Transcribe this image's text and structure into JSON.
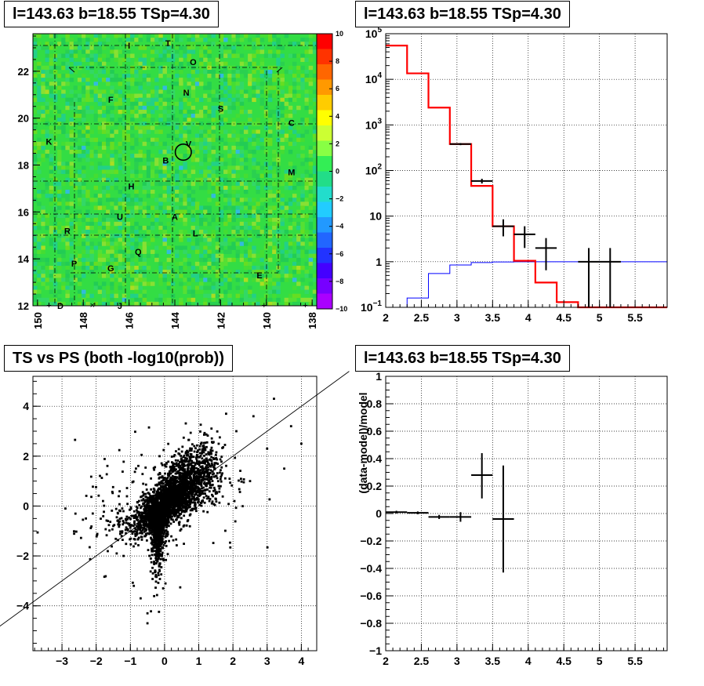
{
  "panels": {
    "skymap": {
      "title": "l=143.63 b=18.55 TSp=4.30"
    },
    "spectrum": {
      "title": "l=143.63 b=18.55 TSp=4.30"
    },
    "scatter": {
      "title": "TS vs PS (both -log10(prob))"
    },
    "residual": {
      "title": "l=143.63 b=18.55 TSp=4.30"
    }
  },
  "colors": {
    "map_base": "#33dd44",
    "model_line": "#ff0000",
    "background_line": "#0000ff",
    "data_points": "#000000"
  },
  "chart_data": [
    {
      "type": "heatmap",
      "title": "l=143.63 b=18.55 TSp=4.30",
      "x_ticks": [
        "150",
        "148",
        "146",
        "144",
        "142",
        "140",
        "138"
      ],
      "xlim": [
        150.2,
        137.8
      ],
      "y_ticks": [
        "12",
        "14",
        "16",
        "18",
        "20",
        "22"
      ],
      "ylim": [
        12,
        23.6
      ],
      "colorbar": {
        "range": [
          -10,
          10
        ],
        "ticks": [
          "10",
          "8",
          "6",
          "4",
          "2",
          "0",
          "-2",
          "-4",
          "-6",
          "-8",
          "-10"
        ]
      },
      "source_labels": [
        {
          "label": "I",
          "l": 146.0,
          "b": 23.1
        },
        {
          "label": "T",
          "l": 144.3,
          "b": 23.2
        },
        {
          "label": "O",
          "l": 143.2,
          "b": 22.4
        },
        {
          "label": "N",
          "l": 143.5,
          "b": 21.1
        },
        {
          "label": "F",
          "l": 146.8,
          "b": 20.8
        },
        {
          "label": "S",
          "l": 142.0,
          "b": 20.4
        },
        {
          "label": "C",
          "l": 138.9,
          "b": 19.8
        },
        {
          "label": "K",
          "l": 149.5,
          "b": 19.0
        },
        {
          "label": "V",
          "l": 143.4,
          "b": 18.9
        },
        {
          "label": "B",
          "l": 144.4,
          "b": 18.2
        },
        {
          "label": "M",
          "l": 138.9,
          "b": 17.7
        },
        {
          "label": "H",
          "l": 145.9,
          "b": 17.1
        },
        {
          "label": "U",
          "l": 146.4,
          "b": 15.8
        },
        {
          "label": "A",
          "l": 144.0,
          "b": 15.8
        },
        {
          "label": "R",
          "l": 148.7,
          "b": 15.2
        },
        {
          "label": "L",
          "l": 143.1,
          "b": 15.1
        },
        {
          "label": "Q",
          "l": 145.6,
          "b": 14.3
        },
        {
          "label": "P",
          "l": 148.4,
          "b": 13.8
        },
        {
          "label": "G",
          "l": 146.8,
          "b": 13.6
        },
        {
          "label": "E",
          "l": 140.3,
          "b": 13.3
        },
        {
          "label": "D",
          "l": 149.0,
          "b": 12.0
        },
        {
          "label": "J",
          "l": 146.4,
          "b": 12.0
        }
      ],
      "circle": {
        "l": 143.63,
        "b": 18.55,
        "r": 0.35
      }
    },
    {
      "type": "line",
      "title": "l=143.63 b=18.55 TSp=4.30",
      "x_ticks": [
        "2",
        "2.5",
        "3",
        "3.5",
        "4",
        "4.5",
        "5",
        "5.5"
      ],
      "xlim": [
        2,
        5.95
      ],
      "y_log": true,
      "y_ticks": [
        "10^-1",
        "1",
        "10",
        "10^2",
        "10^3",
        "10^4",
        "10^5"
      ],
      "ylim": [
        0.1,
        100000
      ],
      "series": [
        {
          "edges": [
            2.0,
            2.3,
            2.6,
            2.9,
            3.2,
            3.5,
            3.8,
            4.1,
            4.4,
            4.7,
            5.0,
            5.3,
            5.6,
            5.95
          ],
          "values": [
            55000,
            13500,
            2400,
            380,
            46,
            6,
            1.05,
            0.35,
            0.13,
            0.1,
            0.1,
            0.1,
            0.1
          ]
        },
        {
          "edges": [
            2.0,
            2.3,
            2.6,
            2.9,
            3.2,
            3.5,
            3.8,
            4.1,
            4.4,
            4.7,
            5.0,
            5.3,
            5.6,
            5.95
          ],
          "values": [
            0.1,
            0.16,
            0.55,
            0.85,
            0.96,
            0.99,
            1.0,
            1.0,
            1.0,
            1.0,
            1.0,
            1.0,
            1.0
          ]
        },
        {
          "points": [
            {
              "x": 3.05,
              "y": 380,
              "xerr": 0.15,
              "ylo": 360,
              "yhi": 400
            },
            {
              "x": 3.35,
              "y": 59,
              "xerr": 0.15,
              "ylo": 52,
              "yhi": 66
            },
            {
              "x": 3.65,
              "y": 6,
              "xerr": 0.15,
              "ylo": 3.6,
              "yhi": 8.5
            },
            {
              "x": 3.95,
              "y": 4,
              "xerr": 0.15,
              "ylo": 2,
              "yhi": 6
            },
            {
              "x": 4.25,
              "y": 2,
              "xerr": 0.15,
              "ylo": 0.65,
              "yhi": 3.3
            },
            {
              "x": 4.85,
              "y": 1,
              "xerr": 0.15,
              "ylo": 0.1,
              "yhi": 2
            },
            {
              "x": 5.15,
              "y": 1,
              "xerr": 0.15,
              "ylo": 0.1,
              "yhi": 2
            }
          ]
        }
      ]
    },
    {
      "type": "scatter",
      "title": "TS vs PS (both -log10(prob))",
      "x_ticks": [
        "−3",
        "−2",
        "−1",
        "0",
        "1",
        "2",
        "3",
        "4"
      ],
      "xlim": [
        -3.85,
        4.45
      ],
      "y_ticks": [
        "−4",
        "−2",
        "0",
        "2",
        "4"
      ],
      "ylim": [
        -5.8,
        5.2
      ],
      "diagonal": {
        "x0": -4.9,
        "y0": -4.9,
        "x1": 5.4,
        "y1": 5.4
      }
    },
    {
      "type": "line",
      "title": "l=143.63 b=18.55 TSp=4.30",
      "ylabel": "(data-model)/model",
      "x_ticks": [
        "2",
        "2.5",
        "3",
        "3.5",
        "4",
        "4.5",
        "5",
        "5.5"
      ],
      "xlim": [
        2,
        5.95
      ],
      "y_ticks": [
        "1",
        "0.8",
        "0.6",
        "0.4",
        "0.2",
        "0",
        "−0.2",
        "−0.4",
        "−0.6",
        "−0.8",
        "−1"
      ],
      "ylim": [
        -1,
        1
      ],
      "points": [
        {
          "x": 2.15,
          "y": 0.01,
          "xerr": 0.15,
          "ylo": 0.0,
          "yhi": 0.02
        },
        {
          "x": 2.45,
          "y": 0.005,
          "xerr": 0.15,
          "ylo": -0.005,
          "yhi": 0.015
        },
        {
          "x": 2.75,
          "y": -0.025,
          "xerr": 0.15,
          "ylo": -0.04,
          "yhi": -0.01
        },
        {
          "x": 3.05,
          "y": -0.025,
          "xerr": 0.15,
          "ylo": -0.06,
          "yhi": 0.01
        },
        {
          "x": 3.35,
          "y": 0.28,
          "xerr": 0.15,
          "ylo": 0.11,
          "yhi": 0.44
        },
        {
          "x": 3.65,
          "y": -0.04,
          "xerr": 0.15,
          "ylo": -0.43,
          "yhi": 0.35
        }
      ]
    }
  ]
}
